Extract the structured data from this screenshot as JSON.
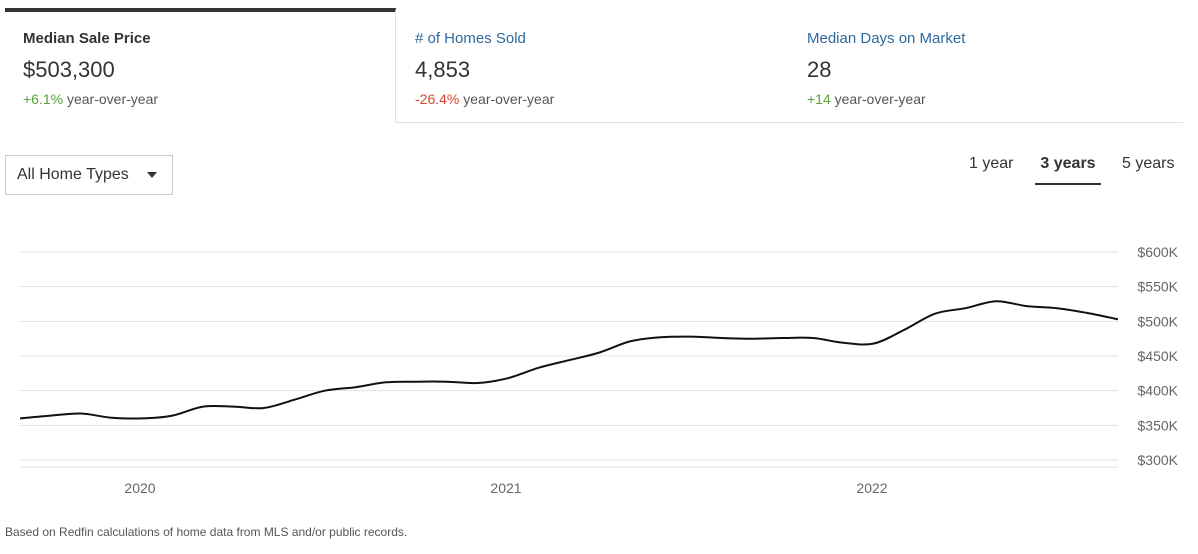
{
  "tabs": [
    {
      "label": "Median Sale Price",
      "value": "$503,300",
      "change": "+6.1%",
      "change_suffix": "year-over-year",
      "active": true
    },
    {
      "label": "# of Homes Sold",
      "value": "4,853",
      "change": "-26.4%",
      "change_suffix": "year-over-year",
      "active": false
    },
    {
      "label": "Median Days on Market",
      "value": "28",
      "change": "+14",
      "change_suffix": "year-over-year",
      "active": false
    }
  ],
  "filter": {
    "selected": "All Home Types"
  },
  "ranges": {
    "one": "1 year",
    "three": "3 years",
    "five": "5 years",
    "selected": "3 years"
  },
  "colors": {
    "positive": "#5aa13c",
    "negative": "#d9452b",
    "link": "#2c6a9e",
    "line": "#111111",
    "grid": "#e3e3e3"
  },
  "chart_data": {
    "type": "line",
    "title": "",
    "xlabel": "",
    "ylabel": "",
    "ylim": [
      300000,
      600000
    ],
    "ytick_labels": [
      "$300K",
      "$350K",
      "$400K",
      "$450K",
      "$500K",
      "$550K",
      "$600K"
    ],
    "yticks": [
      300000,
      350000,
      400000,
      450000,
      500000,
      550000,
      600000
    ],
    "xtick_labels": [
      "2020",
      "2021",
      "2022"
    ],
    "xticks": [
      "2020-01",
      "2021-01",
      "2022-01"
    ],
    "xlim": [
      "2019-09",
      "2022-09"
    ],
    "grid": true,
    "series": [
      {
        "x": [
          "2019-09",
          "2019-10",
          "2019-11",
          "2019-12",
          "2020-01",
          "2020-02",
          "2020-03",
          "2020-04",
          "2020-05",
          "2020-06",
          "2020-07",
          "2020-08",
          "2020-09",
          "2020-10",
          "2020-11",
          "2020-12",
          "2021-01",
          "2021-02",
          "2021-03",
          "2021-04",
          "2021-05",
          "2021-06",
          "2021-07",
          "2021-08",
          "2021-09",
          "2021-10",
          "2021-11",
          "2021-12",
          "2022-01",
          "2022-02",
          "2022-03",
          "2022-04",
          "2022-05",
          "2022-06",
          "2022-07",
          "2022-08",
          "2022-09"
        ],
        "values": [
          360000,
          364000,
          367000,
          361000,
          360000,
          364000,
          377000,
          377000,
          375000,
          387000,
          400000,
          405000,
          412000,
          413000,
          413000,
          411000,
          418000,
          433000,
          444000,
          455000,
          471000,
          477000,
          478000,
          476000,
          475000,
          476000,
          476000,
          469000,
          468000,
          488000,
          511000,
          519000,
          529000,
          522000,
          519000,
          512000,
          503000
        ]
      }
    ]
  },
  "footnote": "Based on Redfin calculations of home data from MLS and/or public records."
}
